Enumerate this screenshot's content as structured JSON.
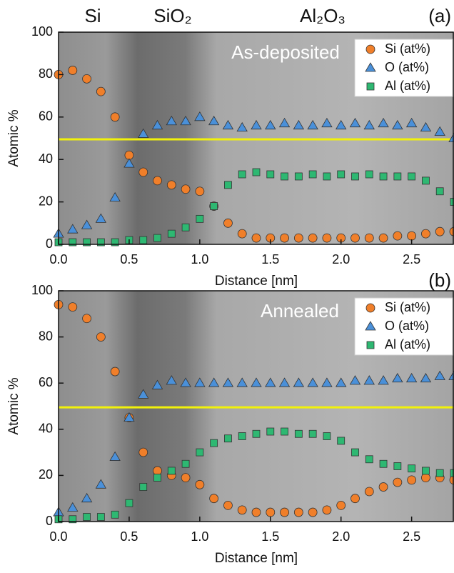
{
  "chart_data": [
    {
      "type": "scatter",
      "region_labels": [
        "Si",
        "SiO₂",
        "Al₂O₃"
      ],
      "panel_label": "(a)",
      "annotation": "As-deposited",
      "xlabel": "Distance [nm]",
      "ylabel": "Atomic %",
      "x": [
        0,
        0.1,
        0.2,
        0.3,
        0.4,
        0.5,
        0.6,
        0.7,
        0.8,
        0.9,
        1.0,
        1.1,
        1.2,
        1.3,
        1.4,
        1.5,
        1.6,
        1.7,
        1.8,
        1.9,
        2.0,
        2.1,
        2.2,
        2.3,
        2.4,
        2.5,
        2.6,
        2.7,
        2.8
      ],
      "series": [
        {
          "name": "Si (at%)",
          "color": "#f07f2a",
          "marker": "circle",
          "values": [
            80,
            82,
            78,
            72,
            60,
            42,
            34,
            30,
            28,
            26,
            25,
            18,
            10,
            5,
            3,
            3,
            3,
            3,
            3,
            3,
            3,
            3,
            3,
            3,
            4,
            4,
            5,
            6,
            6
          ]
        },
        {
          "name": "O (at%)",
          "color": "#4a90d9",
          "marker": "triangle",
          "values": [
            5,
            7,
            9,
            12,
            22,
            38,
            52,
            56,
            58,
            58,
            60,
            58,
            56,
            55,
            56,
            56,
            57,
            56,
            56,
            57,
            56,
            57,
            56,
            57,
            56,
            57,
            55,
            53,
            50
          ]
        },
        {
          "name": "Al (at%)",
          "color": "#2eb872",
          "marker": "square",
          "values": [
            1,
            1,
            1,
            1,
            1,
            2,
            2,
            3,
            5,
            8,
            12,
            18,
            28,
            33,
            34,
            33,
            32,
            32,
            33,
            32,
            33,
            32,
            33,
            32,
            32,
            32,
            30,
            25,
            20
          ]
        }
      ],
      "hline": 49.5,
      "hline_color": "#f2f20a",
      "xlim": [
        0,
        2.8
      ],
      "xticks": [
        {
          "value": 0,
          "label": "0.0"
        },
        0.5,
        {
          "value": 1,
          "label": "1.0"
        },
        1.5,
        {
          "value": 2,
          "label": "2.0"
        },
        2.5
      ],
      "ylim": [
        0,
        100
      ],
      "yticks": [
        0,
        20,
        40,
        60,
        80,
        100
      ],
      "grid": false,
      "legend": "upper right"
    },
    {
      "type": "scatter",
      "panel_label": "(b)",
      "annotation": "Annealed",
      "xlabel": "Distance [nm]",
      "ylabel": "Atomic %",
      "x": [
        0,
        0.1,
        0.2,
        0.3,
        0.4,
        0.5,
        0.6,
        0.7,
        0.8,
        0.9,
        1.0,
        1.1,
        1.2,
        1.3,
        1.4,
        1.5,
        1.6,
        1.7,
        1.8,
        1.9,
        2.0,
        2.1,
        2.2,
        2.3,
        2.4,
        2.5,
        2.6,
        2.7,
        2.8
      ],
      "series": [
        {
          "name": "Si (at%)",
          "color": "#f07f2a",
          "marker": "circle",
          "values": [
            94,
            93,
            88,
            80,
            65,
            45,
            30,
            22,
            20,
            19,
            16,
            10,
            7,
            5,
            4,
            4,
            4,
            4,
            4,
            5,
            7,
            10,
            13,
            15,
            17,
            18,
            19,
            19,
            18
          ]
        },
        {
          "name": "O (at%)",
          "color": "#4a90d9",
          "marker": "triangle",
          "values": [
            4,
            6,
            10,
            16,
            28,
            45,
            55,
            59,
            61,
            60,
            60,
            60,
            60,
            60,
            60,
            60,
            60,
            60,
            60,
            60,
            60,
            61,
            61,
            61,
            62,
            62,
            62,
            63,
            63
          ]
        },
        {
          "name": "Al (at%)",
          "color": "#2eb872",
          "marker": "square",
          "values": [
            1,
            1,
            2,
            2,
            3,
            8,
            15,
            19,
            22,
            25,
            30,
            34,
            36,
            37,
            38,
            39,
            39,
            38,
            38,
            37,
            35,
            30,
            27,
            25,
            24,
            23,
            22,
            21,
            21
          ]
        }
      ],
      "hline": 49.5,
      "hline_color": "#f2f20a",
      "xlim": [
        0,
        2.8
      ],
      "xticks": [
        {
          "value": 0,
          "label": "0.0"
        },
        0.5,
        {
          "value": 1,
          "label": "1.0"
        },
        1.5,
        {
          "value": 2,
          "label": "2.0"
        },
        2.5
      ],
      "ylim": [
        0,
        100
      ],
      "yticks": [
        0,
        20,
        40,
        60,
        80,
        100
      ],
      "grid": false,
      "legend": "upper right"
    }
  ]
}
